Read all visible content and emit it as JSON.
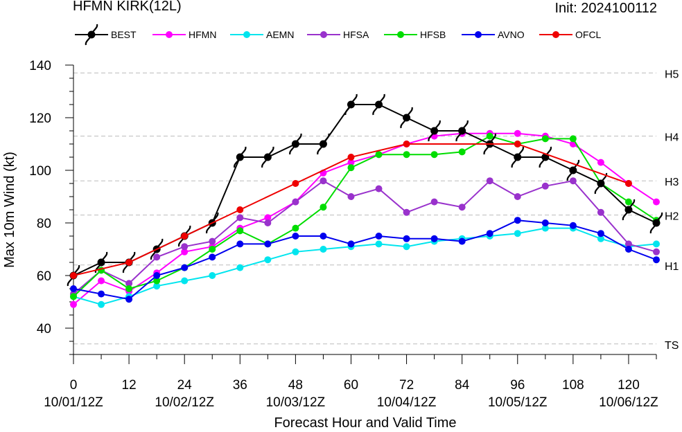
{
  "chart_data": {
    "type": "line",
    "title": "HFMN KIRK(12L)",
    "init_label": "Init: 2024100112",
    "xlabel": "Forecast Hour and Valid Time",
    "ylabel": "Max 10m Wind (kt)",
    "xlim": [
      0,
      126
    ],
    "ylim": [
      30,
      140
    ],
    "x_ticks": [
      0,
      12,
      24,
      36,
      48,
      60,
      72,
      84,
      96,
      108,
      120
    ],
    "x_date_labels": [
      {
        "x": 0,
        "label": "10/01/12Z"
      },
      {
        "x": 24,
        "label": "10/02/12Z"
      },
      {
        "x": 48,
        "label": "10/03/12Z"
      },
      {
        "x": 72,
        "label": "10/04/12Z"
      },
      {
        "x": 96,
        "label": "10/05/12Z"
      },
      {
        "x": 120,
        "label": "10/06/12Z"
      }
    ],
    "y_ticks": [
      40,
      60,
      80,
      100,
      120,
      140
    ],
    "category_lines": [
      {
        "label": "TS",
        "value": 34
      },
      {
        "label": "H1",
        "value": 64
      },
      {
        "label": "H2",
        "value": 83
      },
      {
        "label": "H3",
        "value": 96
      },
      {
        "label": "H4",
        "value": 113
      },
      {
        "label": "H5",
        "value": 137
      }
    ],
    "legend_position": "top",
    "series": [
      {
        "name": "BEST",
        "color": "#000000",
        "marker": "hurricane-symbol",
        "x": [
          0,
          6,
          12,
          18,
          24,
          30,
          36,
          42,
          48,
          54,
          60,
          66,
          72,
          78,
          84,
          90,
          96,
          102,
          108,
          114,
          120,
          126
        ],
        "y": [
          60,
          65,
          65,
          70,
          75,
          80,
          105,
          105,
          110,
          110,
          125,
          125,
          120,
          115,
          115,
          110,
          105,
          105,
          100,
          95,
          85,
          80
        ]
      },
      {
        "name": "HFMN",
        "color": "#ff00ff",
        "marker": "circle",
        "x": [
          0,
          6,
          12,
          18,
          24,
          30,
          36,
          42,
          48,
          54,
          60,
          66,
          72,
          78,
          84,
          90,
          96,
          102,
          108,
          114,
          120,
          126
        ],
        "y": [
          49,
          58,
          54,
          61,
          69,
          71,
          78,
          82,
          88,
          99,
          103,
          106,
          110,
          113,
          114,
          114,
          114,
          113,
          110,
          103,
          95,
          88
        ]
      },
      {
        "name": "AEMN",
        "color": "#00e5ee",
        "marker": "circle",
        "x": [
          0,
          6,
          12,
          18,
          24,
          30,
          36,
          42,
          48,
          54,
          60,
          66,
          72,
          78,
          84,
          90,
          96,
          102,
          108,
          114,
          120,
          126
        ],
        "y": [
          52,
          49,
          52,
          56,
          58,
          60,
          63,
          66,
          69,
          70,
          71,
          72,
          71,
          73,
          74,
          75,
          76,
          78,
          78,
          74,
          71,
          72
        ]
      },
      {
        "name": "HFSA",
        "color": "#9932cc",
        "marker": "circle",
        "x": [
          0,
          6,
          12,
          18,
          24,
          30,
          36,
          42,
          48,
          54,
          60,
          66,
          72,
          78,
          84,
          90,
          96,
          102,
          108,
          114,
          120,
          126
        ],
        "y": [
          53,
          62,
          57,
          67,
          71,
          73,
          82,
          80,
          88,
          96,
          90,
          93,
          84,
          88,
          86,
          96,
          90,
          94,
          96,
          84,
          72,
          69
        ]
      },
      {
        "name": "HFSB",
        "color": "#00dd00",
        "marker": "circle",
        "x": [
          0,
          6,
          12,
          18,
          24,
          30,
          36,
          42,
          48,
          54,
          60,
          66,
          72,
          78,
          84,
          90,
          96,
          102,
          108,
          114,
          120,
          126
        ],
        "y": [
          52,
          62,
          55,
          58,
          63,
          70,
          77,
          72,
          78,
          86,
          101,
          106,
          106,
          106,
          107,
          113,
          110,
          112,
          112,
          95,
          88,
          81
        ]
      },
      {
        "name": "AVNO",
        "color": "#0000ee",
        "marker": "circle",
        "x": [
          0,
          6,
          12,
          18,
          24,
          30,
          36,
          42,
          48,
          54,
          60,
          66,
          72,
          78,
          84,
          90,
          96,
          102,
          108,
          114,
          120,
          126
        ],
        "y": [
          55,
          53,
          51,
          60,
          63,
          67,
          72,
          72,
          75,
          75,
          72,
          75,
          74,
          74,
          73,
          76,
          81,
          80,
          79,
          76,
          70,
          66
        ]
      },
      {
        "name": "OFCL",
        "color": "#ee0000",
        "marker": "circle",
        "x": [
          0,
          12,
          24,
          36,
          48,
          60,
          72,
          96,
          120
        ],
        "y": [
          60,
          65,
          75,
          85,
          95,
          105,
          110,
          110,
          95
        ]
      }
    ]
  }
}
